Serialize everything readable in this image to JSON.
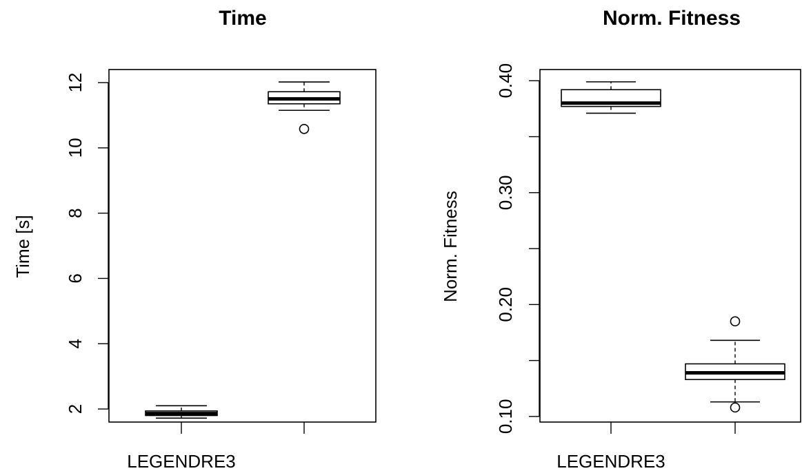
{
  "chart_data": [
    {
      "type": "boxplot",
      "title": "Time",
      "xlabel": "",
      "ylabel": "Time [s]",
      "ylim": [
        1.6,
        12.4
      ],
      "yticks": [
        2,
        4,
        6,
        8,
        10,
        12
      ],
      "ytick_labels": [
        "2",
        "4",
        "6",
        "8",
        "10",
        "12"
      ],
      "categories": [
        "LEGENDRE3",
        ""
      ],
      "boxes": [
        {
          "whisker_low": 1.72,
          "q1": 1.8,
          "median": 1.86,
          "q3": 1.94,
          "whisker_high": 2.1,
          "outliers": []
        },
        {
          "whisker_low": 11.15,
          "q1": 11.35,
          "median": 11.5,
          "q3": 11.72,
          "whisker_high": 12.02,
          "outliers": [
            10.58
          ]
        }
      ]
    },
    {
      "type": "boxplot",
      "title": "Norm. Fitness",
      "xlabel": "",
      "ylabel": "Norm. Fitness",
      "ylim": [
        0.095,
        0.41
      ],
      "yticks": [
        0.1,
        0.15,
        0.2,
        0.25,
        0.3,
        0.35,
        0.4
      ],
      "ytick_labels": [
        "0.10",
        "",
        "0.20",
        "",
        "0.30",
        "",
        "0.40"
      ],
      "categories": [
        "LEGENDRE3",
        ""
      ],
      "boxes": [
        {
          "whisker_low": 0.371,
          "q1": 0.377,
          "median": 0.38,
          "q3": 0.392,
          "whisker_high": 0.399,
          "outliers": []
        },
        {
          "whisker_low": 0.113,
          "q1": 0.133,
          "median": 0.139,
          "q3": 0.147,
          "whisker_high": 0.168,
          "outliers": [
            0.185,
            0.108
          ]
        }
      ]
    }
  ]
}
